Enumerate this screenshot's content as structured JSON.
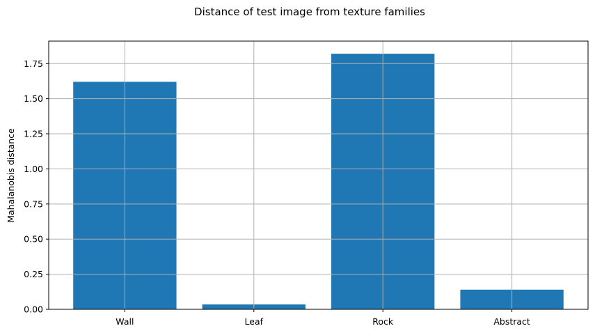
{
  "chart_data": {
    "type": "bar",
    "title": "Distance of test image from texture families",
    "xlabel": "",
    "ylabel": "Mahalanobis distance",
    "categories": [
      "Wall",
      "Leaf",
      "Rock",
      "Abstract"
    ],
    "values": [
      1.62,
      0.035,
      1.82,
      0.14
    ],
    "ylim": [
      0,
      1.91
    ],
    "yticks": [
      0.0,
      0.25,
      0.5,
      0.75,
      1.0,
      1.25,
      1.5,
      1.75
    ],
    "ytick_labels": [
      "0.00",
      "0.25",
      "0.50",
      "0.75",
      "1.00",
      "1.25",
      "1.50",
      "1.75"
    ],
    "grid": true,
    "colors": {
      "bar": "#1f77b4",
      "grid": "#b0b0b0",
      "axis": "#000000"
    }
  }
}
